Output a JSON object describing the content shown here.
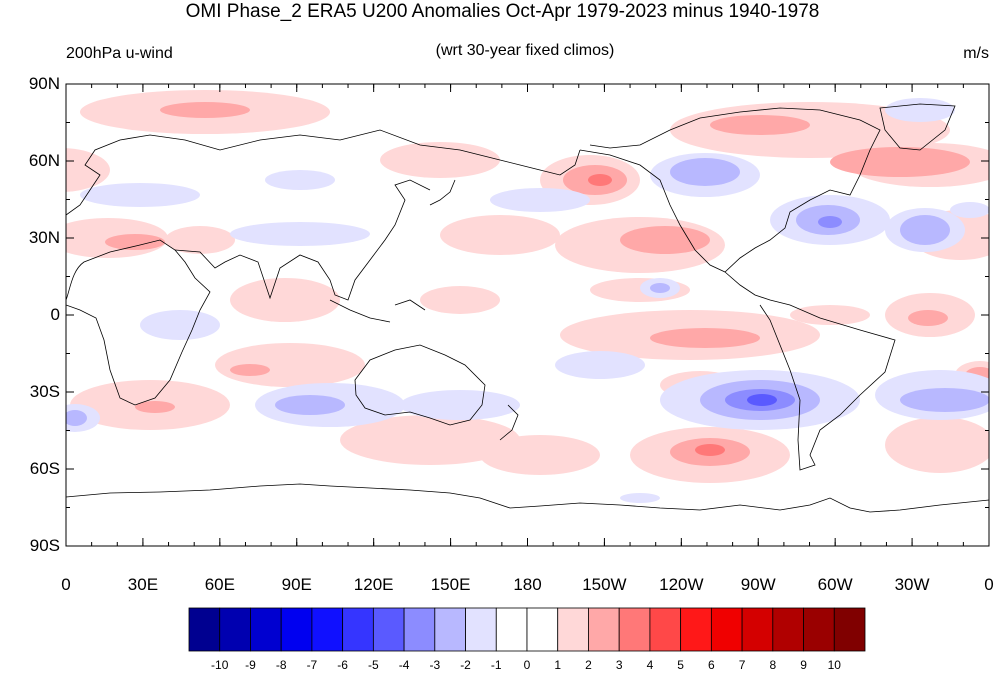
{
  "header": {
    "title": "OMI Phase_2 ERA5 U200 Anomalies Oct-Apr 1979-2023 minus 1940-1978",
    "left_label": "200hPa u-wind",
    "center_label": "(wrt 30-year fixed climos)",
    "right_label": "m/s"
  },
  "axes": {
    "lat_ticks": [
      "90N",
      "60N",
      "30N",
      "0",
      "30S",
      "60S",
      "90S"
    ],
    "lon_ticks": [
      "0",
      "30E",
      "60E",
      "90E",
      "120E",
      "150E",
      "180",
      "150W",
      "120W",
      "90W",
      "60W",
      "30W",
      "0"
    ]
  },
  "colorbar": {
    "labels": [
      "-10",
      "-9",
      "-8",
      "-7",
      "-6",
      "-5",
      "-4",
      "-3",
      "-2",
      "-1",
      "0",
      "1",
      "2",
      "3",
      "4",
      "5",
      "6",
      "7",
      "8",
      "9",
      "10"
    ],
    "colors": [
      "#000090",
      "#0000b0",
      "#0000d0",
      "#0000f0",
      "#1010ff",
      "#3535ff",
      "#5a5aff",
      "#8c8cff",
      "#b8b8ff",
      "#e2e2ff",
      "#ffffff",
      "#ffffff",
      "#ffd8d8",
      "#ffa8a8",
      "#ff7878",
      "#ff4848",
      "#ff1818",
      "#f00000",
      "#d40000",
      "#b00000",
      "#9a0000",
      "#800000"
    ]
  },
  "colors": {
    "neg1": "#e2e2ff",
    "neg2": "#b8b8ff",
    "neg3": "#8c8cff",
    "neg4": "#5a5aff",
    "pos1": "#ffd8d8",
    "pos2": "#ffa8a8",
    "pos3": "#ff7878"
  }
}
